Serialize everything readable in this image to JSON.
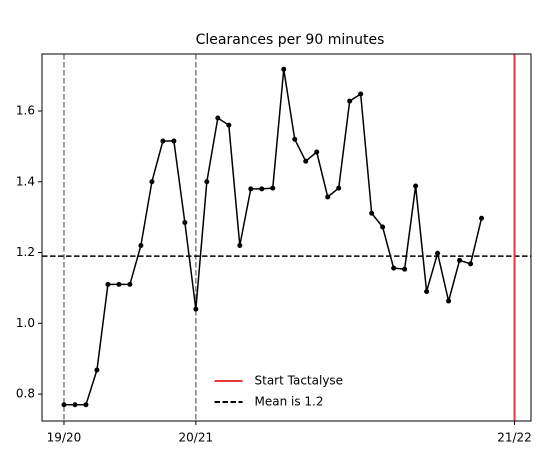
{
  "chart_data": {
    "type": "line",
    "title": "Clearances per 90 minutes",
    "x": [
      0,
      1,
      2,
      3,
      4,
      5,
      6,
      7,
      8,
      9,
      10,
      11,
      12,
      13,
      14,
      15,
      16,
      17,
      18,
      19,
      20,
      21,
      22,
      23,
      24,
      25,
      26,
      27,
      28,
      29,
      30,
      31,
      32,
      33,
      34,
      35,
      36,
      37,
      38
    ],
    "series": [
      {
        "color": "#000000",
        "values": [
          0.77,
          0.77,
          0.77,
          0.868,
          1.11,
          1.11,
          1.11,
          1.22,
          1.4,
          1.515,
          1.515,
          1.285,
          1.04,
          1.4,
          1.58,
          1.56,
          1.22,
          1.38,
          1.38,
          1.382,
          1.718,
          1.52,
          1.458,
          1.484,
          1.357,
          1.382,
          1.628,
          1.648,
          1.311,
          1.272,
          1.156,
          1.153,
          1.388,
          1.09,
          1.198,
          1.063,
          1.178,
          1.168,
          1.297
        ]
      }
    ],
    "vlines": [
      {
        "name": "Start Tactalyse",
        "x": 41,
        "color": "#e0393e"
      }
    ],
    "hlines": [
      {
        "name": "Mean is 1.2",
        "y": 1.19,
        "color": "#000000"
      }
    ],
    "season_lines": [
      0,
      12
    ],
    "xlim": [
      -2,
      42.5
    ],
    "ylim": [
      0.724,
      1.761
    ],
    "xticks": [
      {
        "value": 0,
        "label": "19/20"
      },
      {
        "value": 12,
        "label": "20/21"
      },
      {
        "value": 41,
        "label": "21/22"
      }
    ],
    "yticks": [
      0.8,
      {
        "value": 1,
        "label": "1.0"
      },
      1.2,
      1.4,
      1.6
    ],
    "legend": "lower center"
  }
}
